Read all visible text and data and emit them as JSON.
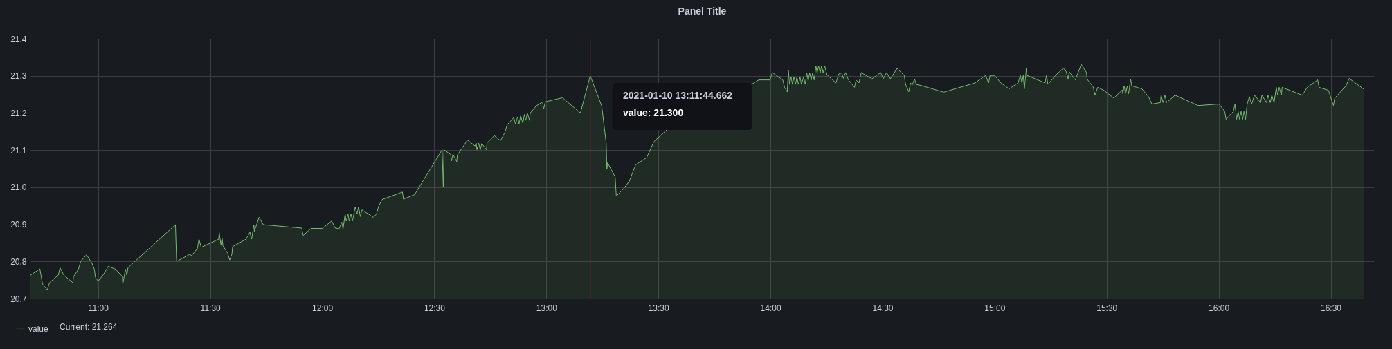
{
  "chart_data": {
    "type": "area",
    "title": "Panel Title",
    "x": [
      10.698,
      10.74,
      10.752,
      10.773,
      10.783,
      10.822,
      10.83,
      10.847,
      10.887,
      10.89,
      10.912,
      10.922,
      10.948,
      10.972,
      10.983,
      10.988,
      11.0,
      11.025,
      11.045,
      11.078,
      11.108,
      11.11,
      11.122,
      11.128,
      11.133,
      11.345,
      11.35,
      11.408,
      11.417,
      11.443,
      11.45,
      11.46,
      11.538,
      11.54,
      11.548,
      11.553,
      11.557,
      11.578,
      11.587,
      11.597,
      11.6,
      11.66,
      11.677,
      11.685,
      11.695,
      11.697,
      11.718,
      11.737,
      11.908,
      11.915,
      11.95,
      12.0,
      12.042,
      12.058,
      12.075,
      12.087,
      12.093,
      12.102,
      12.107,
      12.115,
      12.12,
      12.128,
      12.135,
      12.147,
      12.155,
      12.162,
      12.17,
      12.177,
      12.228,
      12.242,
      12.252,
      12.267,
      12.358,
      12.362,
      12.412,
      12.535,
      12.54,
      12.543,
      12.573,
      12.577,
      12.583,
      12.6,
      12.603,
      12.648,
      12.682,
      12.687,
      12.69,
      12.698,
      12.705,
      12.712,
      12.733,
      12.735,
      12.768,
      12.795,
      12.815,
      12.825,
      12.855,
      12.862,
      12.872,
      12.878,
      12.885,
      12.895,
      12.902,
      12.908,
      12.915,
      12.925,
      12.928,
      12.955,
      12.983,
      12.988,
      12.995,
      13.072,
      13.152,
      13.1957,
      13.247,
      13.267,
      13.27,
      13.273,
      13.307,
      13.312,
      13.343,
      13.37,
      13.398,
      13.448,
      13.48,
      13.54,
      13.915,
      13.948,
      13.998,
      14.008,
      14.055,
      14.063,
      14.075,
      14.08,
      14.085,
      14.092,
      14.098,
      14.105,
      14.112,
      14.118,
      14.125,
      14.132,
      14.138,
      14.148,
      14.155,
      14.162,
      14.168,
      14.175,
      14.182,
      14.188,
      14.195,
      14.203,
      14.208,
      14.215,
      14.222,
      14.228,
      14.235,
      14.242,
      14.252,
      14.292,
      14.305,
      14.318,
      14.325,
      14.335,
      14.348,
      14.375,
      14.382,
      14.395,
      14.405,
      14.415,
      14.453,
      14.492,
      14.503,
      14.518,
      14.535,
      14.565,
      14.597,
      14.603,
      14.617,
      14.625,
      14.632,
      14.643,
      14.65,
      14.672,
      14.773,
      14.913,
      14.96,
      14.973,
      14.98,
      15.0,
      15.028,
      15.065,
      15.105,
      15.115,
      15.122,
      15.128,
      15.133,
      15.142,
      15.145,
      15.225,
      15.232,
      15.238,
      15.272,
      15.307,
      15.32,
      15.328,
      15.333,
      15.36,
      15.387,
      15.41,
      15.413,
      15.44,
      15.448,
      15.46,
      15.488,
      15.532,
      15.57,
      15.572,
      15.578,
      15.585,
      15.592,
      15.598,
      15.607,
      15.612,
      15.657,
      15.687,
      15.702,
      15.74,
      15.743,
      15.752,
      15.76,
      15.768,
      15.805,
      15.908,
      16.002,
      16.027,
      16.033,
      16.065,
      16.073,
      16.08,
      16.087,
      16.093,
      16.1,
      16.107,
      16.113,
      16.12,
      16.127,
      16.137,
      16.147,
      16.16,
      16.187,
      16.193,
      16.213,
      16.22,
      16.23,
      16.237,
      16.247,
      16.257,
      16.263,
      16.27,
      16.28,
      16.283,
      16.373,
      16.395,
      16.442,
      16.448,
      16.49,
      16.512,
      16.518,
      16.568,
      16.582,
      16.648
    ],
    "series": [
      {
        "name": "value",
        "color": "#73bf69",
        "values": [
          20.763,
          20.78,
          20.739,
          20.723,
          20.743,
          20.763,
          20.783,
          20.763,
          20.743,
          20.759,
          20.779,
          20.8,
          20.818,
          20.796,
          20.779,
          20.757,
          20.747,
          20.766,
          20.787,
          20.779,
          20.759,
          20.739,
          20.779,
          20.763,
          20.783,
          20.899,
          20.8,
          20.819,
          20.816,
          20.835,
          20.86,
          20.838,
          20.86,
          20.879,
          20.844,
          20.864,
          20.842,
          20.822,
          20.804,
          20.82,
          20.84,
          20.86,
          20.879,
          20.86,
          20.899,
          20.881,
          20.919,
          20.899,
          20.89,
          20.87,
          20.889,
          20.889,
          20.909,
          20.89,
          20.888,
          20.906,
          20.888,
          20.928,
          20.909,
          20.928,
          20.909,
          20.928,
          20.909,
          20.947,
          20.928,
          20.947,
          20.921,
          20.939,
          20.919,
          20.928,
          20.949,
          20.967,
          20.987,
          20.968,
          20.98,
          21.101,
          21.0,
          21.101,
          21.088,
          21.071,
          21.089,
          21.069,
          21.087,
          21.127,
          21.111,
          21.119,
          21.101,
          21.119,
          21.101,
          21.118,
          21.101,
          21.119,
          21.139,
          21.125,
          21.148,
          21.168,
          21.188,
          21.17,
          21.19,
          21.17,
          21.192,
          21.173,
          21.196,
          21.18,
          21.2,
          21.18,
          21.2,
          21.219,
          21.23,
          21.211,
          21.23,
          21.241,
          21.2,
          21.3,
          21.219,
          21.119,
          21.048,
          21.066,
          21.028,
          20.976,
          20.995,
          21.016,
          21.06,
          21.08,
          21.123,
          21.156,
          21.277,
          21.289,
          21.289,
          21.309,
          21.289,
          21.269,
          21.257,
          21.316,
          21.277,
          21.297,
          21.277,
          21.297,
          21.277,
          21.297,
          21.277,
          21.297,
          21.277,
          21.297,
          21.277,
          21.308,
          21.287,
          21.308,
          21.289,
          21.308,
          21.289,
          21.327,
          21.308,
          21.327,
          21.308,
          21.327,
          21.308,
          21.327,
          21.303,
          21.281,
          21.305,
          21.308,
          21.293,
          21.309,
          21.289,
          21.269,
          21.289,
          21.281,
          21.309,
          21.305,
          21.292,
          21.309,
          21.292,
          21.309,
          21.292,
          21.32,
          21.301,
          21.277,
          21.257,
          21.281,
          21.275,
          21.292,
          21.277,
          21.274,
          21.256,
          21.281,
          21.301,
          21.281,
          21.301,
          21.301,
          21.281,
          21.265,
          21.281,
          21.301,
          21.281,
          21.301,
          21.265,
          21.321,
          21.301,
          21.281,
          21.301,
          21.277,
          21.301,
          21.321,
          21.311,
          21.291,
          21.311,
          21.289,
          21.331,
          21.309,
          21.291,
          21.27,
          21.248,
          21.269,
          21.261,
          21.24,
          21.262,
          21.252,
          21.273,
          21.252,
          21.273,
          21.252,
          21.291,
          21.273,
          21.265,
          21.244,
          21.224,
          21.228,
          21.248,
          21.228,
          21.248,
          21.228,
          21.248,
          21.22,
          21.224,
          21.204,
          21.183,
          21.204,
          21.224,
          21.183,
          21.204,
          21.183,
          21.204,
          21.183,
          21.204,
          21.183,
          21.224,
          21.244,
          21.224,
          21.248,
          21.228,
          21.248,
          21.228,
          21.248,
          21.228,
          21.248,
          21.228,
          21.269,
          21.248,
          21.269,
          21.248,
          21.269,
          21.248,
          21.269,
          21.289,
          21.269,
          21.261,
          21.22,
          21.24,
          21.273,
          21.293,
          21.264
        ]
      }
    ],
    "xlim": [
      10.698,
      16.693
    ],
    "xticks": [
      {
        "value": 11,
        "label": "11:00"
      },
      {
        "value": 11.5,
        "label": "11:30"
      },
      {
        "value": 12,
        "label": "12:00"
      },
      {
        "value": 12.5,
        "label": "12:30"
      },
      {
        "value": 13,
        "label": "13:00"
      },
      {
        "value": 13.5,
        "label": "13:30"
      },
      {
        "value": 14,
        "label": "14:00"
      },
      {
        "value": 14.5,
        "label": "14:30"
      },
      {
        "value": 15,
        "label": "15:00"
      },
      {
        "value": 15.5,
        "label": "15:30"
      },
      {
        "value": 16,
        "label": "16:00"
      },
      {
        "value": 16.5,
        "label": "16:30"
      }
    ],
    "ylim": [
      20.7,
      21.4
    ],
    "yticks": [
      20.7,
      20.8,
      20.9,
      {
        "value": 21,
        "label": "21.0"
      },
      21.1,
      21.2,
      21.3,
      21.4
    ],
    "grid": true,
    "legend": "bottom left",
    "ref_lines": [
      {
        "axis": "x",
        "value": 13.1957,
        "color": "#c4162a"
      }
    ],
    "annotations": [
      "2021-01-10 13:11:44.662",
      "value:   21.300",
      "Current: 21.264"
    ]
  }
}
